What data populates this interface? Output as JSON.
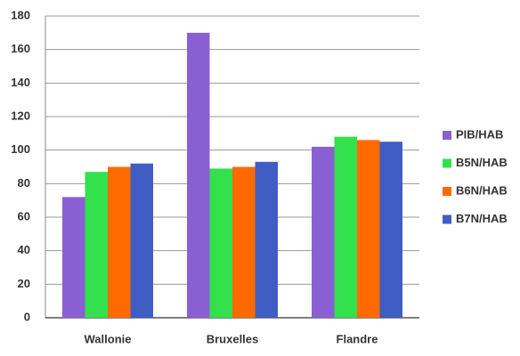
{
  "chart_data": {
    "type": "bar",
    "categories": [
      "Wallonie",
      "Bruxelles",
      "Flandre"
    ],
    "series": [
      {
        "name": "PIB/HAB",
        "color": "#8a5fd4",
        "values": [
          72,
          170,
          102
        ]
      },
      {
        "name": "B5N/HAB",
        "color": "#33e14d",
        "values": [
          87,
          89,
          108
        ]
      },
      {
        "name": "B6N/HAB",
        "color": "#ff6a00",
        "values": [
          90,
          90,
          106
        ]
      },
      {
        "name": "B7N/HAB",
        "color": "#3f5dc3",
        "values": [
          92,
          93,
          105
        ]
      }
    ],
    "ylim": [
      0,
      180
    ],
    "yticks": [
      0,
      20,
      40,
      60,
      80,
      100,
      120,
      140,
      160,
      180
    ],
    "grid": true,
    "legend": "right"
  }
}
